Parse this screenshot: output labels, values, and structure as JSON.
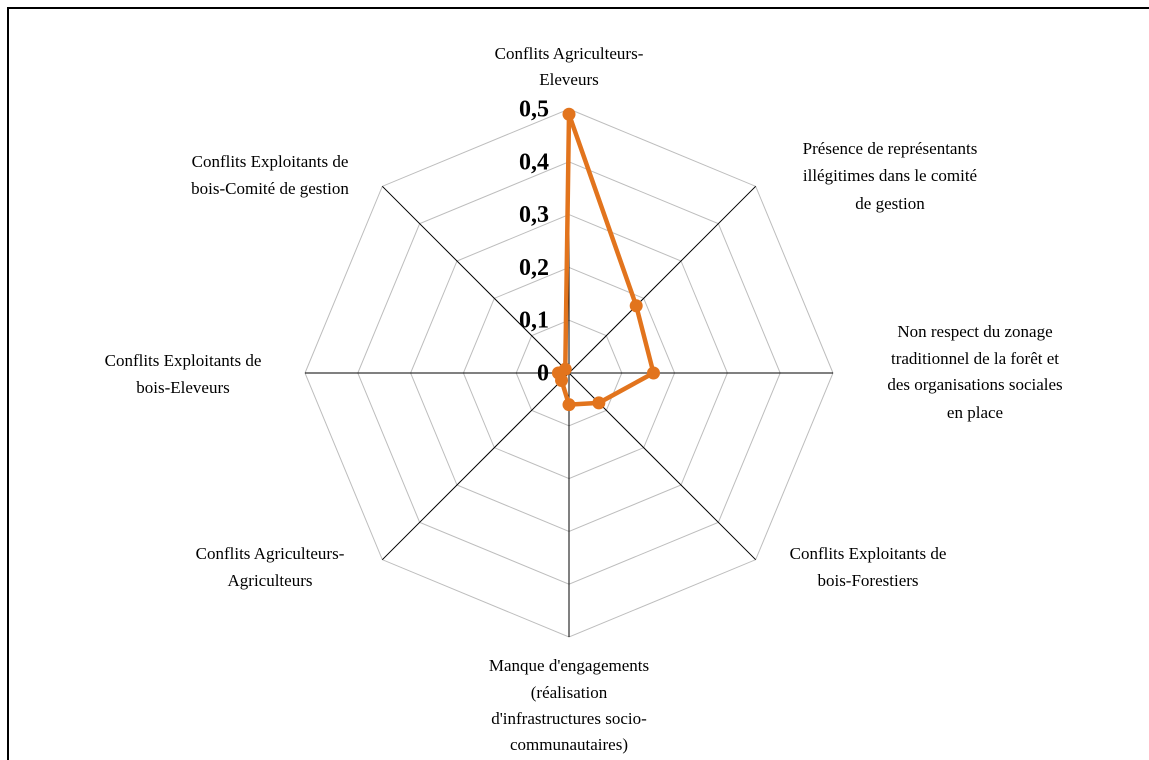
{
  "chart_data": {
    "type": "radar",
    "categories": [
      [
        "Conflits Agriculteurs-",
        "Eleveurs"
      ],
      [
        "Présence de représentants",
        "illégitimes dans le comité",
        "de gestion"
      ],
      [
        "Non respect du zonage",
        "traditionnel de la forêt et",
        "des organisations sociales",
        "en place"
      ],
      [
        "Conflits Exploitants de",
        "bois-Forestiers"
      ],
      [
        "Manque d'engagements",
        "(réalisation",
        "d'infrastructures socio-",
        "communautaires)"
      ],
      [
        "Conflits Agriculteurs-",
        "Agriculteurs"
      ],
      [
        "Conflits Exploitants de",
        "bois-Eleveurs"
      ],
      [
        "Conflits Exploitants de",
        "bois-Comité de gestion"
      ]
    ],
    "series": [
      {
        "color": "#e2741d",
        "values": [
          0.49,
          0.18,
          0.16,
          0.08,
          0.06,
          0.02,
          0.02,
          0.01
        ]
      }
    ],
    "rlim": [
      0,
      0.5
    ],
    "rticks": [
      {
        "value": 0,
        "label": "0"
      },
      {
        "value": 0.1,
        "label": "0,1"
      },
      {
        "value": 0.2,
        "label": "0,2"
      },
      {
        "value": 0.3,
        "label": "0,3"
      },
      {
        "value": 0.4,
        "label": "0,4"
      },
      {
        "value": 0.5,
        "label": "0,5"
      }
    ],
    "grid": true
  }
}
